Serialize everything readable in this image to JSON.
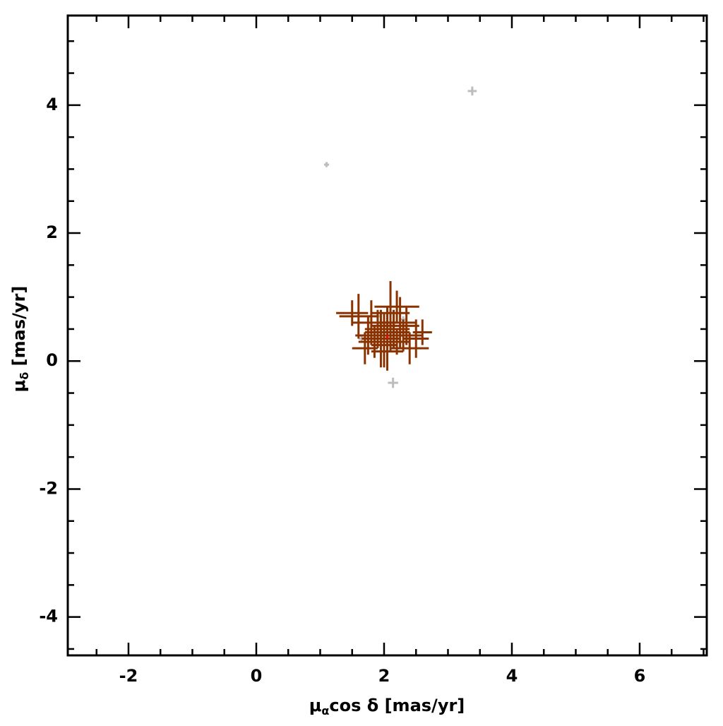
{
  "chart_data": {
    "type": "errorbar-scatter",
    "xlabel": {
      "main": "μ",
      "sub": "α",
      "rest": "cos δ [mas/yr]"
    },
    "ylabel": {
      "main": "μ",
      "sub": "δ",
      "rest": " [mas/yr]"
    },
    "xlim": [
      -2.95,
      7.05
    ],
    "ylim": [
      -4.6,
      5.4
    ],
    "xticks": [
      -2,
      0,
      2,
      4,
      6
    ],
    "yticks": [
      -4,
      -2,
      0,
      2,
      4
    ],
    "xticks_minor": [
      -2.5,
      -1.5,
      -1,
      -0.5,
      0.5,
      1,
      1.5,
      2.5,
      3,
      3.5,
      4.5,
      5,
      5.5,
      6.5,
      7
    ],
    "yticks_minor": [
      -4.5,
      -3.5,
      -3,
      -2.5,
      -1.5,
      -1,
      -0.5,
      0.5,
      1,
      1.5,
      2.5,
      3,
      3.5,
      4.5,
      5
    ],
    "series": [
      {
        "color": "#bdbdbd",
        "x": [
          3.38,
          1.1,
          2.14,
          1.65,
          2.3,
          1.9
        ],
        "y": [
          4.22,
          3.07,
          -0.34,
          0.35,
          0.65,
          0.7
        ],
        "xerr": [
          0.07,
          0.04,
          0.08,
          0.05,
          0.05,
          0.05
        ],
        "yerr": [
          0.07,
          0.04,
          0.08,
          0.05,
          0.05,
          0.05
        ]
      },
      {
        "color": "#8b3300",
        "x": [
          2.05,
          1.95,
          2.15,
          1.8,
          2.3,
          2.0,
          2.5,
          1.6,
          2.1,
          1.85,
          2.25,
          2.4,
          1.9,
          2.05,
          2.2,
          1.75,
          2.6,
          1.5,
          2.0,
          2.1,
          1.95,
          2.2,
          1.7,
          2.35,
          2.05
        ],
        "y": [
          0.45,
          0.35,
          0.5,
          0.6,
          0.4,
          0.25,
          0.35,
          0.7,
          0.75,
          0.3,
          0.6,
          0.2,
          0.5,
          0.15,
          0.3,
          0.4,
          0.45,
          0.75,
          0.55,
          0.35,
          0.4,
          0.85,
          0.2,
          0.55,
          0.6
        ],
        "xerr": [
          0.35,
          0.3,
          0.25,
          0.3,
          0.3,
          0.2,
          0.2,
          0.3,
          0.3,
          0.25,
          0.25,
          0.3,
          0.2,
          0.25,
          0.2,
          0.2,
          0.15,
          0.25,
          0.2,
          0.15,
          0.15,
          0.35,
          0.2,
          0.2,
          0.15
        ],
        "yerr": [
          0.4,
          0.45,
          0.3,
          0.35,
          0.25,
          0.35,
          0.3,
          0.35,
          0.5,
          0.25,
          0.4,
          0.25,
          0.3,
          0.3,
          0.2,
          0.3,
          0.2,
          0.2,
          0.2,
          0.2,
          0.15,
          0.25,
          0.25,
          0.3,
          0.25
        ]
      },
      {
        "color": "#ff0000",
        "x": [
          2.05
        ],
        "y": [
          0.38
        ],
        "xerr": [
          0.02
        ],
        "yerr": [
          0.02
        ]
      }
    ]
  }
}
